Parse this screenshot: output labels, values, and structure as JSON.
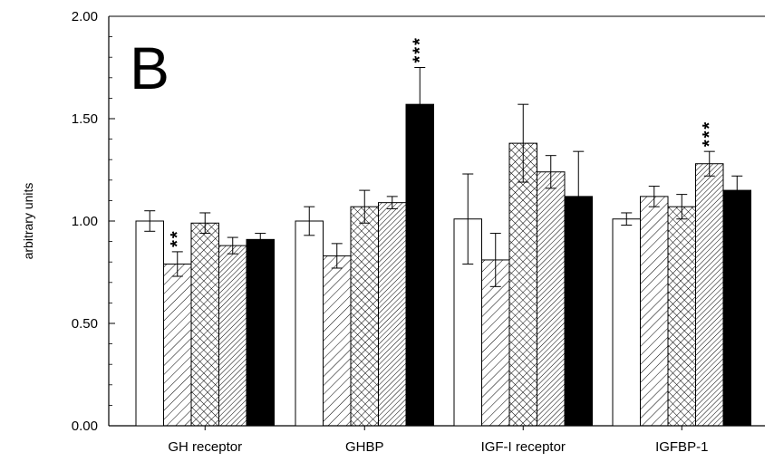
{
  "chart_data": {
    "type": "bar",
    "panel_label": "B",
    "title": "",
    "xlabel": "",
    "ylabel": "arbitrary units",
    "ylim": [
      0,
      2.0
    ],
    "yticks": [
      "0.00",
      "0.50",
      "1.00",
      "1.50",
      "2.00"
    ],
    "grid": false,
    "categories": [
      "GH receptor",
      "GHBP",
      "IGF-I receptor",
      "IGFBP-1"
    ],
    "series": [
      {
        "pattern": "open",
        "values": [
          1.0,
          1.0,
          1.01,
          1.01
        ],
        "errors": [
          0.05,
          0.07,
          0.22,
          0.03
        ],
        "significance": [
          "",
          "",
          "",
          ""
        ]
      },
      {
        "pattern": "diagonal-hatch",
        "values": [
          0.79,
          0.83,
          0.81,
          1.12
        ],
        "errors": [
          0.06,
          0.06,
          0.13,
          0.05
        ],
        "significance": [
          "**",
          "",
          "",
          ""
        ]
      },
      {
        "pattern": "cross-hatch",
        "values": [
          0.99,
          1.07,
          1.38,
          1.07
        ],
        "errors": [
          0.05,
          0.08,
          0.19,
          0.06
        ],
        "significance": [
          "",
          "",
          "",
          ""
        ]
      },
      {
        "pattern": "dense-diagonal-hatch",
        "values": [
          0.88,
          1.09,
          1.24,
          1.28
        ],
        "errors": [
          0.04,
          0.03,
          0.08,
          0.06
        ],
        "significance": [
          "",
          "",
          "",
          "***"
        ]
      },
      {
        "pattern": "solid",
        "values": [
          0.91,
          1.57,
          1.12,
          1.15
        ],
        "errors": [
          0.03,
          0.18,
          0.22,
          0.07
        ],
        "significance": [
          "",
          "***",
          "",
          ""
        ]
      }
    ]
  }
}
